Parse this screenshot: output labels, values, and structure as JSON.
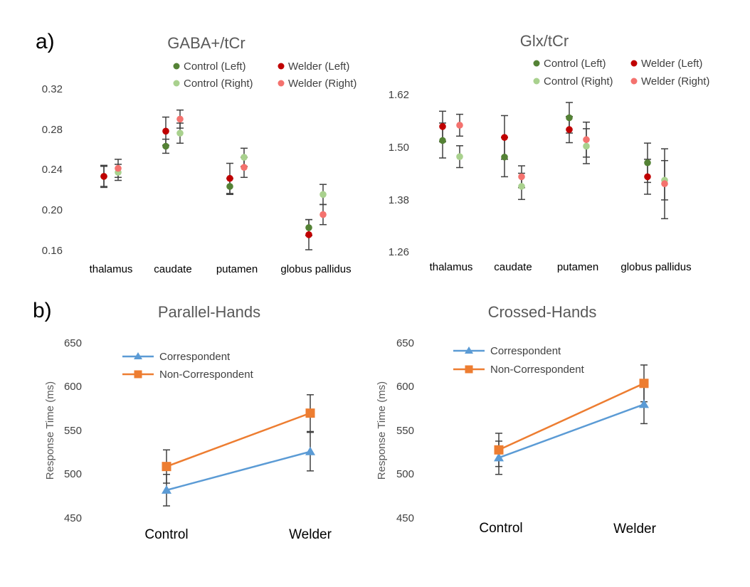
{
  "panel_labels": {
    "a": "a)",
    "b": "b)"
  },
  "colors": {
    "control_left": "#548235",
    "control_right": "#A9D18E",
    "welder_left": "#C00000",
    "welder_right": "#F4726E",
    "correspondent": "#5B9BD5",
    "noncorrespondent": "#ED7D31",
    "errorbar": "#404040"
  },
  "chart_data": [
    {
      "id": "gaba",
      "type": "scatter",
      "title": "GABA+/tCr",
      "categories": [
        "thalamus",
        "caudate",
        "putamen",
        "globus pallidus"
      ],
      "yticks": [
        "0.32",
        "0.28",
        "0.24",
        "0.20",
        "0.16"
      ],
      "ylim": [
        0.16,
        0.32
      ],
      "legend": [
        "Control (Left)",
        "Welder (Left)",
        "Control (Right)",
        "Welder (Right)"
      ],
      "series": [
        {
          "name": "Control (Left)",
          "side": "left",
          "color": "control_left",
          "values": [
            0.233,
            0.263,
            0.223,
            0.182
          ],
          "errors": [
            0.01,
            0.007,
            0.008,
            0.008
          ]
        },
        {
          "name": "Welder (Left)",
          "side": "left",
          "color": "welder_left",
          "values": [
            0.233,
            0.278,
            0.231,
            0.175
          ],
          "errors": [
            0.011,
            0.014,
            0.015,
            0.015
          ]
        },
        {
          "name": "Control (Right)",
          "side": "right",
          "color": "control_right",
          "values": [
            0.237,
            0.276,
            0.252,
            0.215
          ],
          "errors": [
            0.008,
            0.01,
            0.009,
            0.01
          ]
        },
        {
          "name": "Welder (Right)",
          "side": "right",
          "color": "welder_right",
          "values": [
            0.241,
            0.29,
            0.242,
            0.195
          ],
          "errors": [
            0.009,
            0.009,
            0.01,
            0.01
          ]
        }
      ]
    },
    {
      "id": "glx",
      "type": "scatter",
      "title": "Glx/tCr",
      "categories": [
        "thalamus",
        "caudate",
        "putamen",
        "globus pallidus"
      ],
      "yticks": [
        "1.62",
        "1.50",
        "1.38",
        "1.26"
      ],
      "ylim": [
        1.26,
        1.62
      ],
      "legend": [
        "Control (Left)",
        "Welder (Left)",
        "Control (Right)",
        "Welder (Right)"
      ],
      "series": [
        {
          "name": "Control (Left)",
          "side": "left",
          "color": "control_left",
          "values": [
            1.515,
            1.477,
            1.567,
            1.464
          ],
          "errors": [
            0.04,
            0.045,
            0.035,
            0.045
          ]
        },
        {
          "name": "Welder (Left)",
          "side": "left",
          "color": "welder_left",
          "values": [
            1.547,
            1.522,
            1.54,
            1.432
          ],
          "errors": [
            0.035,
            0.05,
            0.03,
            0.04
          ]
        },
        {
          "name": "Control (Right)",
          "side": "right",
          "color": "control_right",
          "values": [
            1.478,
            1.41,
            1.502,
            1.424
          ],
          "errors": [
            0.025,
            0.03,
            0.04,
            0.045
          ]
        },
        {
          "name": "Welder (Right)",
          "side": "right",
          "color": "welder_right",
          "values": [
            1.55,
            1.432,
            1.517,
            1.416
          ],
          "errors": [
            0.025,
            0.025,
            0.04,
            0.08
          ]
        }
      ]
    },
    {
      "id": "parallel",
      "type": "line",
      "title": "Parallel-Hands",
      "categories": [
        "Control",
        "Welder"
      ],
      "yticks": [
        "650",
        "600",
        "550",
        "500",
        "450"
      ],
      "ylim": [
        450,
        650
      ],
      "ylabel": "Response Time (ms)",
      "series": [
        {
          "name": "Correspondent",
          "color": "correspondent",
          "marker": "triangle",
          "values": [
            481,
            525
          ],
          "errors": [
            18,
            22
          ]
        },
        {
          "name": "Non-Correspondent",
          "color": "noncorrespondent",
          "marker": "square",
          "values": [
            508,
            569
          ],
          "errors": [
            19,
            21
          ]
        }
      ]
    },
    {
      "id": "crossed",
      "type": "line",
      "title": "Crossed-Hands",
      "categories": [
        "Control",
        "Welder"
      ],
      "yticks": [
        "650",
        "600",
        "550",
        "500",
        "450"
      ],
      "ylim": [
        450,
        650
      ],
      "ylabel": "Response Time (ms)",
      "series": [
        {
          "name": "Correspondent",
          "color": "correspondent",
          "marker": "triangle",
          "values": [
            518,
            579
          ],
          "errors": [
            19,
            22
          ]
        },
        {
          "name": "Non-Correspondent",
          "color": "noncorrespondent",
          "marker": "square",
          "values": [
            527,
            603
          ],
          "errors": [
            19,
            21
          ]
        }
      ]
    }
  ]
}
